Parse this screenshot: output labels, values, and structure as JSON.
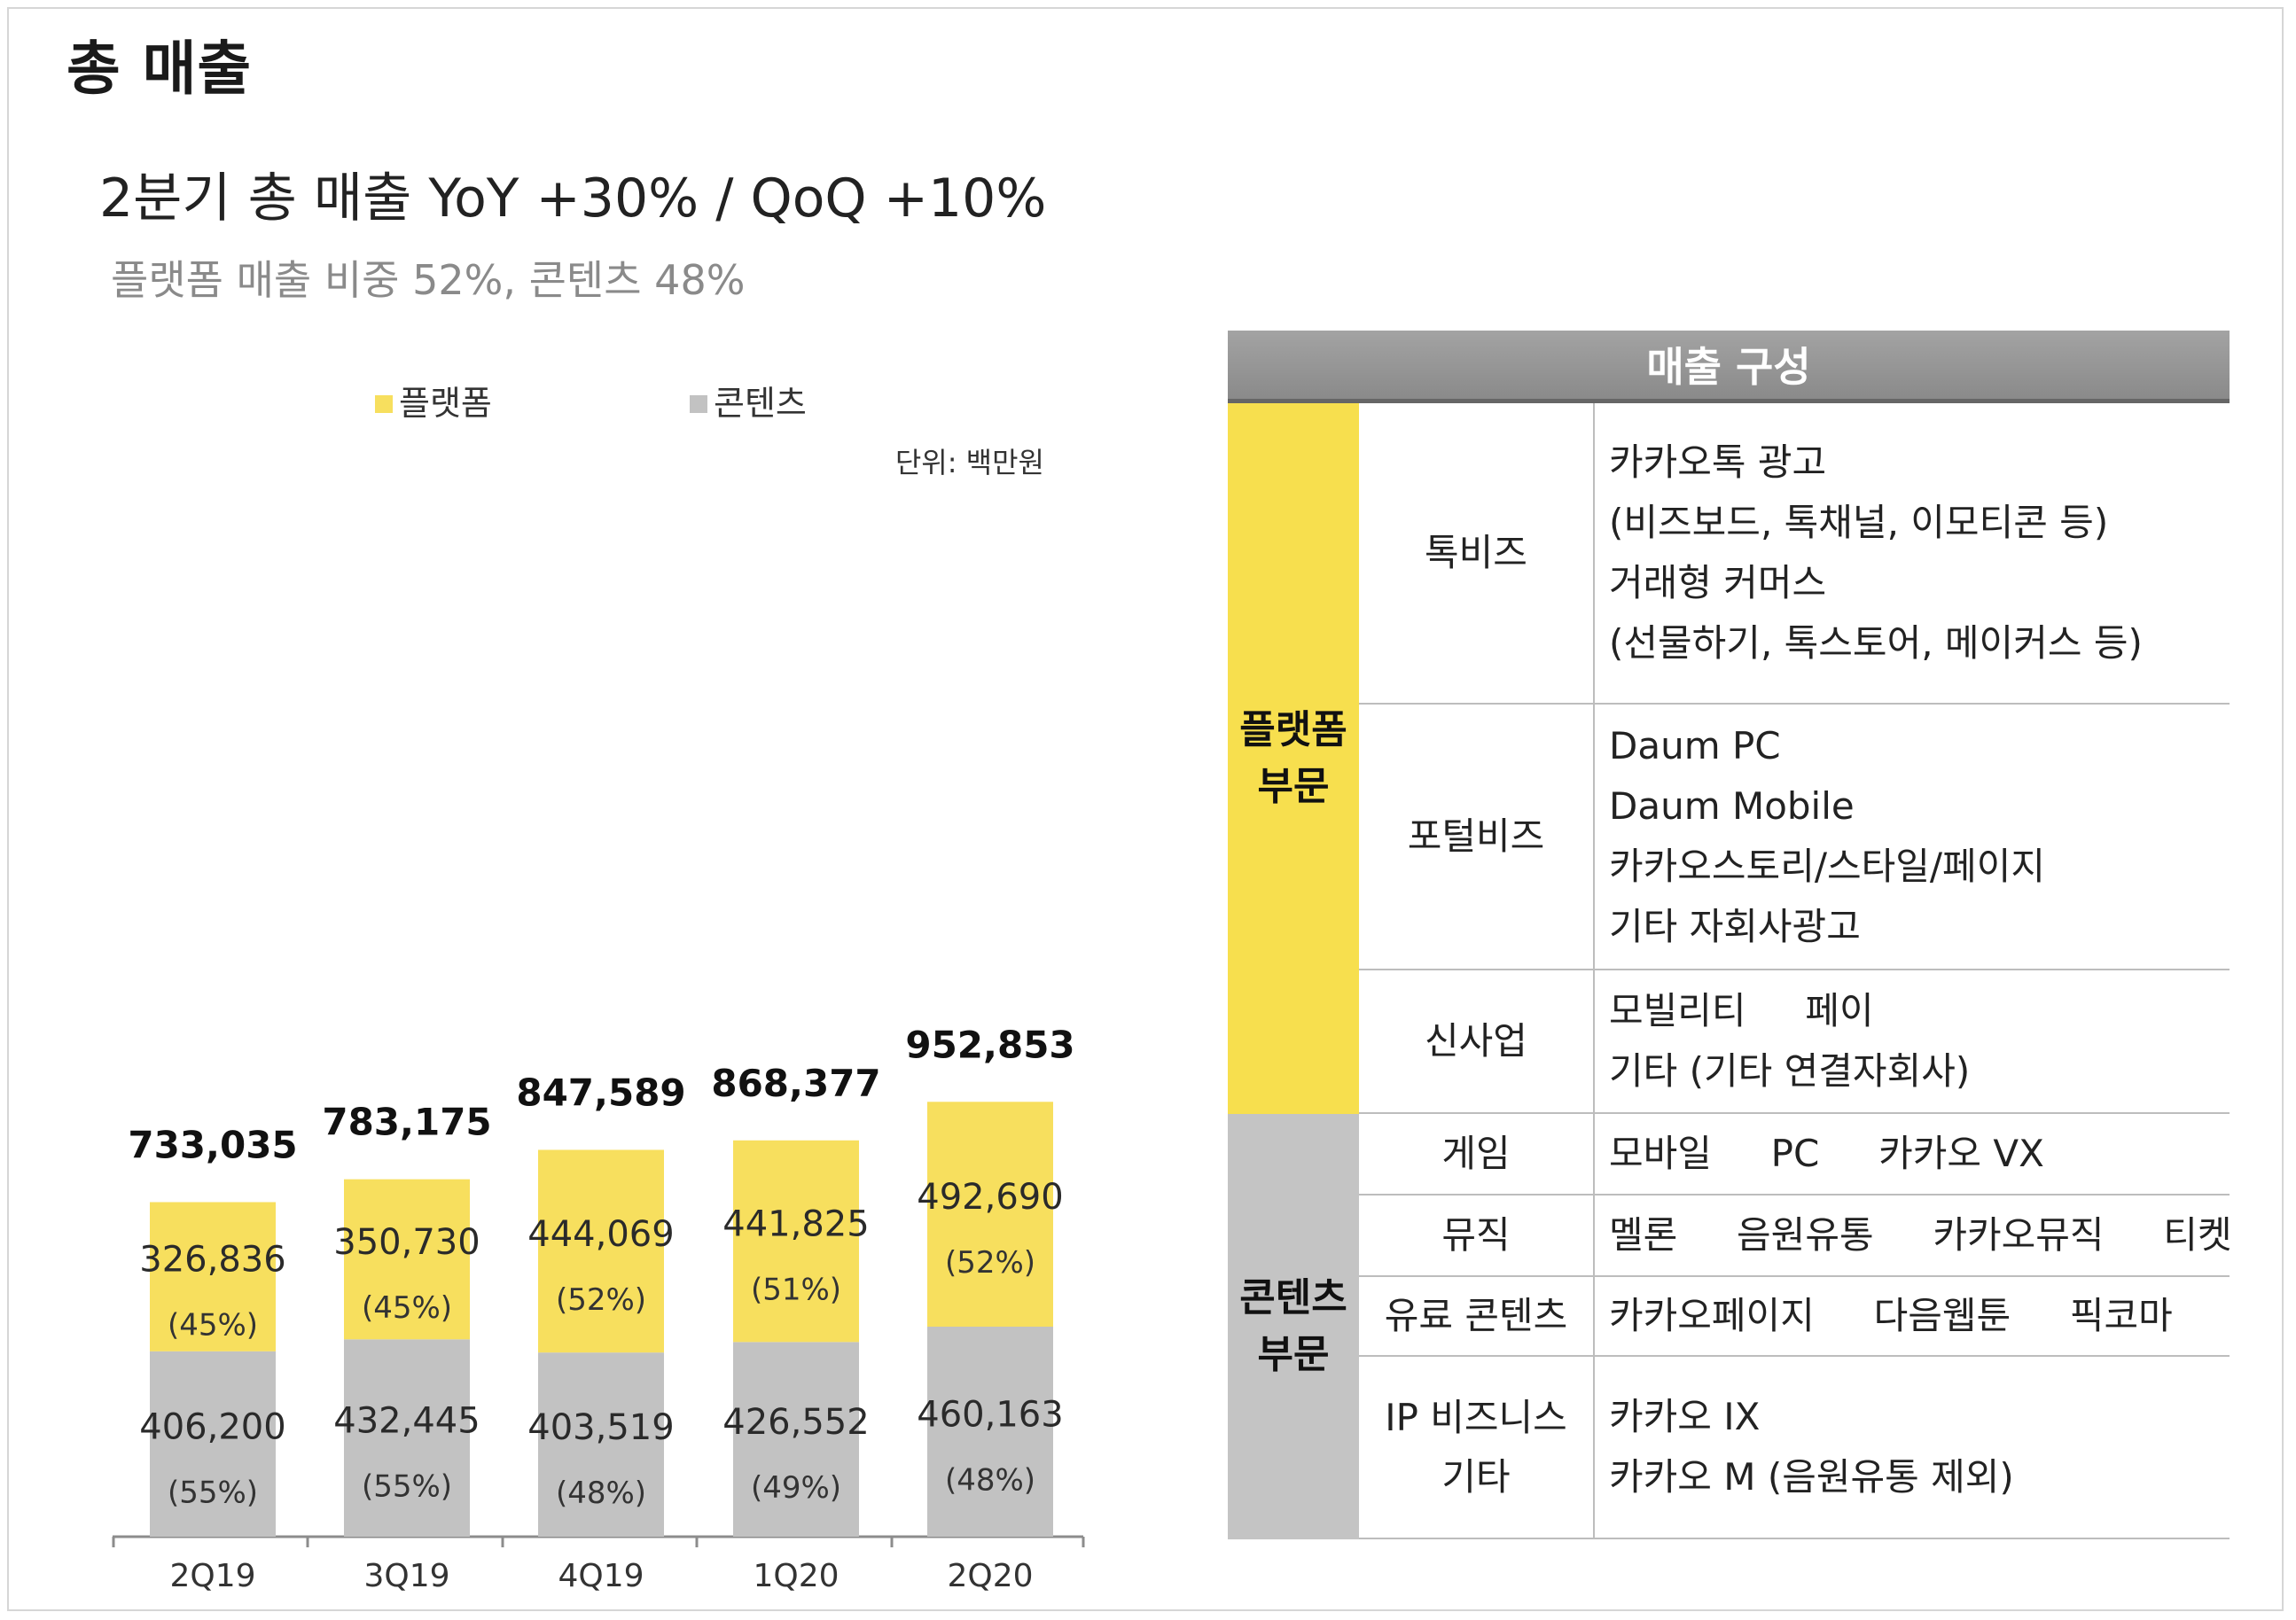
{
  "page_title": "총 매출",
  "headline": "2분기 총 매출  YoY +30% / QoQ +10%",
  "subline": "플랫폼 매출 비중 52%, 콘텐츠 48%",
  "chart_data": {
    "type": "bar",
    "stacked": true,
    "unit": "단위: 백만원",
    "categories": [
      "2Q19",
      "3Q19",
      "4Q19",
      "1Q20",
      "2Q20"
    ],
    "totals": [
      "733,035",
      "783,175",
      "847,589",
      "868,377",
      "952,853"
    ],
    "total_values": [
      733035,
      783175,
      847589,
      868377,
      952853
    ],
    "series": [
      {
        "name": "콘텐츠",
        "color": "#c2c2c2",
        "values": [
          406200,
          432445,
          403519,
          426552,
          460163
        ],
        "labels": [
          "406,200",
          "432,445",
          "403,519",
          "426,552",
          "460,163"
        ],
        "percents": [
          "(55%)",
          "(55%)",
          "(48%)",
          "(49%)",
          "(48%)"
        ]
      },
      {
        "name": "플랫폼",
        "color": "#f7df5e",
        "values": [
          326836,
          350730,
          444069,
          441825,
          492690
        ],
        "labels": [
          "326,836",
          "350,730",
          "444,069",
          "441,825",
          "492,690"
        ],
        "percents": [
          "(45%)",
          "(45%)",
          "(52%)",
          "(51%)",
          "(52%)"
        ]
      }
    ],
    "legend_position": "top",
    "grid": false
  },
  "table": {
    "header": "매출 구성",
    "segments": [
      {
        "name": "플랫폼\n부문",
        "color": "#f7df4e",
        "rows": [
          {
            "name": "톡비즈",
            "items": [
              "카카오톡 광고",
              "(비즈보드, 톡채널, 이모티콘 등)",
              "거래형 커머스",
              "(선물하기, 톡스토어, 메이커스 등)"
            ]
          },
          {
            "name": "포털비즈",
            "items": [
              "Daum PC",
              "Daum Mobile",
              "카카오스토리/스타일/페이지",
              "기타 자회사광고"
            ]
          },
          {
            "name": "신사업",
            "items": [
              "모빌리티     페이",
              "기타 (기타 연결자회사)"
            ]
          }
        ]
      },
      {
        "name": "콘텐츠\n부문",
        "color": "#c4c4c4",
        "rows": [
          {
            "name": "게임",
            "items": [
              "모바일     PC     카카오 VX"
            ]
          },
          {
            "name": "뮤직",
            "items": [
              "멜론     음원유통     카카오뮤직     티켓"
            ]
          },
          {
            "name": "유료 콘텐츠",
            "items": [
              "카카오페이지     다음웹툰     픽코마"
            ]
          },
          {
            "name": "IP 비즈니스\n기타",
            "items": [
              "카카오 IX",
              "카카오 M (음원유통 제외)"
            ]
          }
        ]
      }
    ]
  }
}
